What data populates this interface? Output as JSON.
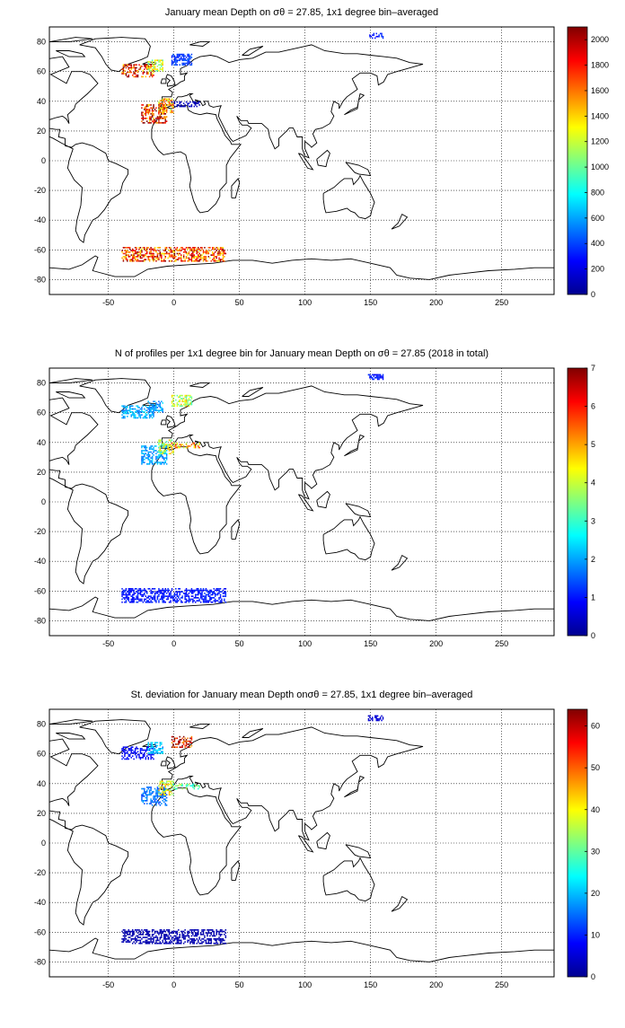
{
  "panels": [
    {
      "title": "January mean Depth on σθ = 27.85, 1x1 degree bin–averaged",
      "xlim": [
        -95,
        290
      ],
      "ylim": [
        -90,
        90
      ],
      "x_ticks": [
        -50,
        0,
        50,
        100,
        150,
        200,
        250
      ],
      "y_ticks": [
        -80,
        -60,
        -40,
        -20,
        0,
        20,
        40,
        60,
        80
      ],
      "colorbar": {
        "min": 0,
        "max": 2100,
        "ticks": [
          0,
          200,
          400,
          600,
          800,
          1000,
          1200,
          1400,
          1600,
          1800,
          2000
        ]
      },
      "data_regions": [
        {
          "lon": [
            -25,
            -5
          ],
          "lat": [
            25,
            38
          ],
          "value": 1800
        },
        {
          "lon": [
            -12,
            0
          ],
          "lat": [
            32,
            42
          ],
          "value": 1450
        },
        {
          "lon": [
            -40,
            -15
          ],
          "lat": [
            56,
            65
          ],
          "value": 1750
        },
        {
          "lon": [
            -20,
            -8
          ],
          "lat": [
            60,
            68
          ],
          "value": 1200
        },
        {
          "lon": [
            -2,
            14
          ],
          "lat": [
            64,
            72
          ],
          "value": 380
        },
        {
          "lon": [
            -2,
            20
          ],
          "lat": [
            36,
            40
          ],
          "value": 120
        },
        {
          "lon": [
            148,
            160
          ],
          "lat": [
            82,
            86
          ],
          "value": 300
        },
        {
          "lon": [
            -40,
            40
          ],
          "lat": [
            -68,
            -58
          ],
          "value": 1700
        }
      ]
    },
    {
      "title": "N of profiles per 1x1 degree bin for January mean Depth on σθ = 27.85 (2018 in total)",
      "xlim": [
        -95,
        290
      ],
      "ylim": [
        -90,
        90
      ],
      "x_ticks": [
        -50,
        0,
        50,
        100,
        150,
        200,
        250
      ],
      "y_ticks": [
        -80,
        -60,
        -40,
        -20,
        0,
        20,
        40,
        60,
        80
      ],
      "colorbar": {
        "min": 0,
        "max": 7,
        "ticks": [
          0,
          1,
          2,
          3,
          4,
          5,
          6,
          7
        ]
      },
      "data_regions": [
        {
          "lon": [
            -25,
            -5
          ],
          "lat": [
            25,
            38
          ],
          "value": 2
        },
        {
          "lon": [
            -12,
            0
          ],
          "lat": [
            32,
            42
          ],
          "value": 4
        },
        {
          "lon": [
            -40,
            -15
          ],
          "lat": [
            56,
            65
          ],
          "value": 2
        },
        {
          "lon": [
            -20,
            -8
          ],
          "lat": [
            60,
            68
          ],
          "value": 2
        },
        {
          "lon": [
            -2,
            14
          ],
          "lat": [
            64,
            72
          ],
          "value": 4
        },
        {
          "lon": [
            -2,
            20
          ],
          "lat": [
            36,
            40
          ],
          "value": 5
        },
        {
          "lon": [
            148,
            160
          ],
          "lat": [
            82,
            86
          ],
          "value": 1
        },
        {
          "lon": [
            -40,
            40
          ],
          "lat": [
            -68,
            -58
          ],
          "value": 1
        }
      ]
    },
    {
      "title": "St. deviation for January mean Depth onσθ = 27.85, 1x1 degree bin–averaged",
      "xlim": [
        -95,
        290
      ],
      "ylim": [
        -90,
        90
      ],
      "x_ticks": [
        -50,
        0,
        50,
        100,
        150,
        200,
        250
      ],
      "y_ticks": [
        -80,
        -60,
        -40,
        -20,
        0,
        20,
        40,
        60,
        80
      ],
      "colorbar": {
        "min": 0,
        "max": 64,
        "ticks": [
          0,
          10,
          20,
          30,
          40,
          50,
          60
        ]
      },
      "data_regions": [
        {
          "lon": [
            -25,
            -5
          ],
          "lat": [
            25,
            38
          ],
          "value": 15
        },
        {
          "lon": [
            -12,
            0
          ],
          "lat": [
            32,
            42
          ],
          "value": 40
        },
        {
          "lon": [
            -40,
            -15
          ],
          "lat": [
            56,
            65
          ],
          "value": 8
        },
        {
          "lon": [
            -20,
            -8
          ],
          "lat": [
            60,
            68
          ],
          "value": 20
        },
        {
          "lon": [
            -2,
            14
          ],
          "lat": [
            64,
            72
          ],
          "value": 60
        },
        {
          "lon": [
            -2,
            20
          ],
          "lat": [
            36,
            40
          ],
          "value": 30
        },
        {
          "lon": [
            148,
            160
          ],
          "lat": [
            82,
            86
          ],
          "value": 5
        },
        {
          "lon": [
            -40,
            40
          ],
          "lat": [
            -68,
            -58
          ],
          "value": 3
        }
      ]
    }
  ],
  "colormap": "jet"
}
